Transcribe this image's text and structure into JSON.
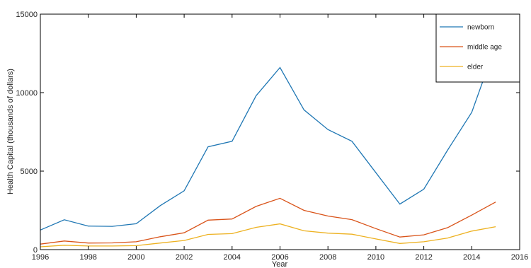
{
  "chart_data": {
    "type": "line",
    "xlabel": "Year",
    "ylabel": "Health Capital (thousands of dollars)",
    "xlim": [
      1996,
      2016
    ],
    "ylim": [
      0,
      15000
    ],
    "xticks": [
      "1996",
      "1998",
      "2000",
      "2002",
      "2004",
      "2006",
      "2008",
      "2010",
      "2012",
      "2014",
      "2016"
    ],
    "yticks": [
      "0",
      "5000",
      "10000",
      "15000"
    ],
    "grid": false,
    "legend_position": "top-right",
    "x": [
      1996,
      1997,
      1998,
      1999,
      2000,
      2001,
      2002,
      2003,
      2004,
      2005,
      2006,
      2007,
      2008,
      2009,
      2010,
      2011,
      2012,
      2013,
      2014,
      2015
    ],
    "series": [
      {
        "name": "newborn",
        "color": "#1f77b4",
        "values": [
          1250,
          1900,
          1500,
          1480,
          1650,
          2800,
          3750,
          6550,
          6900,
          9800,
          11600,
          8900,
          7650,
          6900,
          4900,
          2900,
          3850,
          6350,
          8750,
          13000
        ]
      },
      {
        "name": "middle age",
        "color": "#d95319",
        "values": [
          350,
          550,
          420,
          430,
          500,
          820,
          1070,
          1880,
          1950,
          2750,
          3270,
          2500,
          2140,
          1910,
          1340,
          800,
          940,
          1400,
          2200,
          3030
        ]
      },
      {
        "name": "elder",
        "color": "#edb120",
        "values": [
          180,
          280,
          230,
          230,
          250,
          420,
          580,
          970,
          1020,
          1420,
          1640,
          1200,
          1050,
          980,
          680,
          390,
          500,
          740,
          1180,
          1460
        ]
      }
    ]
  }
}
